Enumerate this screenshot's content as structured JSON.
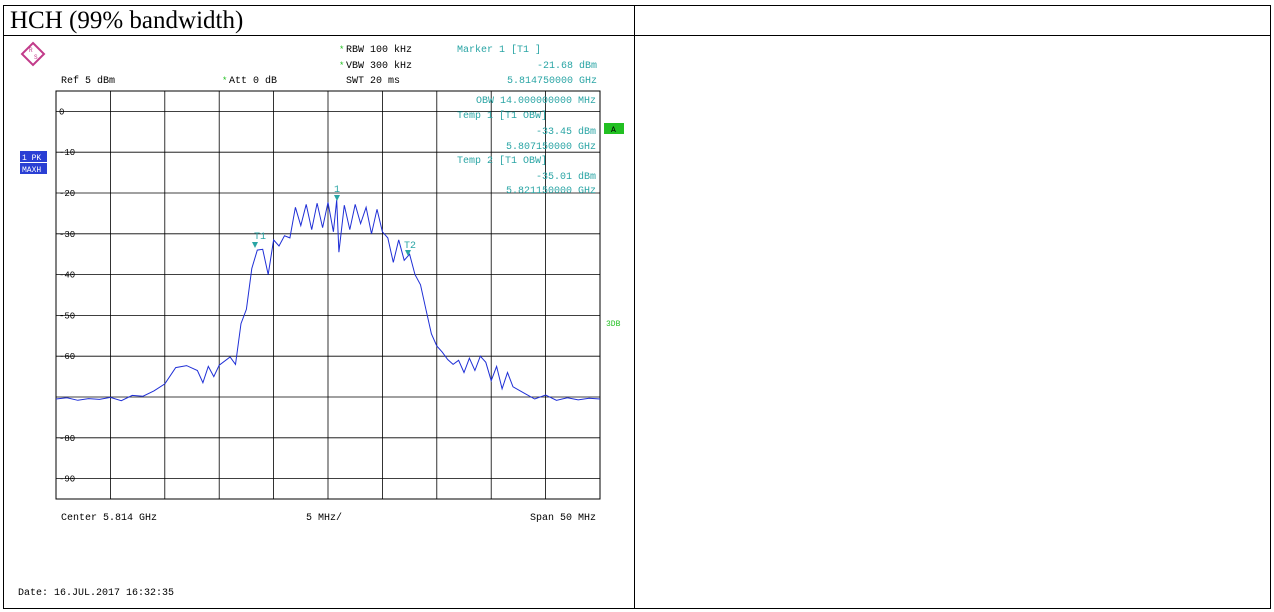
{
  "page": {
    "title": "HCH (99% bandwidth)"
  },
  "instrument": {
    "rbw": "RBW  100 kHz",
    "vbw": "VBW  300 kHz",
    "swt": "SWT  20 ms",
    "ref": "Ref   5 dBm",
    "att": "Att   0 dB",
    "trace_badge_1": "1 PK",
    "trace_badge_2": "MAXH",
    "a_badge": "A",
    "db_badge": "3DB",
    "date": "Date: 16.JUL.2017  16:32:35",
    "center": "Center  5.814 GHz",
    "per_div": "5 MHz/",
    "span": "Span  50 MHz"
  },
  "markers": {
    "marker1_title": "Marker 1 [T1 ]",
    "marker1_level": "-21.68 dBm",
    "marker1_freq": "5.814750000 GHz",
    "obw": "OBW 14.000000000 MHz",
    "temp1_title": "Temp 1 [T1 OBW]",
    "temp1_level": "-33.45 dBm",
    "temp1_freq": "5.807150000 GHz",
    "temp2_title": "Temp 2 [T1 OBW]",
    "temp2_level": "-35.01 dBm",
    "temp2_freq": "5.821150000 GHz",
    "label_1": "1",
    "label_t1": "T1",
    "label_t2": "T2"
  },
  "colors": {
    "trace": "#1f2fd6",
    "marker_text": "#2aa5a5",
    "badge_blue": "#2a3fd4",
    "badge_green": "#22c022",
    "grid": "#000000"
  },
  "chart_data": {
    "type": "line",
    "title": "HCH (99% bandwidth)",
    "xlabel": "",
    "ylabel": "",
    "x_unit": "GHz",
    "y_unit": "dBm",
    "xlim": [
      5.789,
      5.839
    ],
    "ylim": [
      -95,
      5
    ],
    "yticks": [
      0,
      -10,
      -20,
      -30,
      -40,
      -50,
      -60,
      -70,
      -80,
      -90
    ],
    "ytick_labels": [
      "0",
      "-10",
      "-20",
      "-30",
      "-40",
      "-50",
      "-60",
      "",
      "-80",
      "-90"
    ],
    "grid": true,
    "series": [
      {
        "points": [
          [
            5.789,
            -70.5
          ],
          [
            5.79,
            -70.2
          ],
          [
            5.791,
            -70.8
          ],
          [
            5.792,
            -70.4
          ],
          [
            5.793,
            -70.6
          ],
          [
            5.794,
            -70.1
          ],
          [
            5.795,
            -70.9
          ],
          [
            5.796,
            -69.6
          ],
          [
            5.797,
            -69.8
          ],
          [
            5.798,
            -68.5
          ],
          [
            5.799,
            -66.8
          ],
          [
            5.8,
            -62.8
          ],
          [
            5.801,
            -62.3
          ],
          [
            5.802,
            -63.5
          ],
          [
            5.8025,
            -66.5
          ],
          [
            5.803,
            -62.5
          ],
          [
            5.8035,
            -65.0
          ],
          [
            5.804,
            -62.2
          ],
          [
            5.805,
            -60.2
          ],
          [
            5.8055,
            -62.0
          ],
          [
            5.806,
            -52.0
          ],
          [
            5.8065,
            -48.5
          ],
          [
            5.807,
            -38.5
          ],
          [
            5.8075,
            -34.0
          ],
          [
            5.808,
            -33.8
          ],
          [
            5.8085,
            -40.0
          ],
          [
            5.809,
            -31.5
          ],
          [
            5.8095,
            -33.0
          ],
          [
            5.81,
            -30.5
          ],
          [
            5.8105,
            -31.0
          ],
          [
            5.811,
            -23.5
          ],
          [
            5.8115,
            -28.0
          ],
          [
            5.812,
            -22.8
          ],
          [
            5.8125,
            -29.0
          ],
          [
            5.813,
            -22.5
          ],
          [
            5.8135,
            -28.5
          ],
          [
            5.814,
            -22.3
          ],
          [
            5.8145,
            -29.5
          ],
          [
            5.8148,
            -21.7
          ],
          [
            5.815,
            -34.5
          ],
          [
            5.8155,
            -23.0
          ],
          [
            5.816,
            -29.0
          ],
          [
            5.8165,
            -22.8
          ],
          [
            5.817,
            -27.5
          ],
          [
            5.8175,
            -23.5
          ],
          [
            5.818,
            -30.0
          ],
          [
            5.8185,
            -24.0
          ],
          [
            5.819,
            -29.5
          ],
          [
            5.8195,
            -31.0
          ],
          [
            5.82,
            -37.0
          ],
          [
            5.8205,
            -31.5
          ],
          [
            5.821,
            -36.5
          ],
          [
            5.8215,
            -35.0
          ],
          [
            5.822,
            -40.0
          ],
          [
            5.8225,
            -42.5
          ],
          [
            5.823,
            -48.5
          ],
          [
            5.8235,
            -54.5
          ],
          [
            5.824,
            -57.5
          ],
          [
            5.8245,
            -59.0
          ],
          [
            5.825,
            -60.8
          ],
          [
            5.8255,
            -62.0
          ],
          [
            5.826,
            -61.0
          ],
          [
            5.8265,
            -64.0
          ],
          [
            5.827,
            -60.5
          ],
          [
            5.8275,
            -63.5
          ],
          [
            5.828,
            -60.0
          ],
          [
            5.8285,
            -61.5
          ],
          [
            5.829,
            -66.0
          ],
          [
            5.8295,
            -62.5
          ],
          [
            5.83,
            -68.0
          ],
          [
            5.8305,
            -64.0
          ],
          [
            5.831,
            -67.5
          ],
          [
            5.832,
            -69.0
          ],
          [
            5.833,
            -70.5
          ],
          [
            5.834,
            -69.5
          ],
          [
            5.835,
            -70.8
          ],
          [
            5.836,
            -70.2
          ],
          [
            5.837,
            -70.7
          ],
          [
            5.838,
            -70.3
          ],
          [
            5.839,
            -70.5
          ]
        ]
      }
    ]
  }
}
